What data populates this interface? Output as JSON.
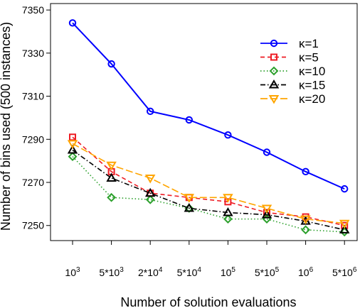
{
  "chart_data": {
    "type": "line",
    "title": "",
    "xlabel": "Number of solution evaluations",
    "ylabel": "Number of bins used (500 instances)",
    "categories": [
      {
        "base": "10",
        "exp": "3"
      },
      {
        "base": "5*10",
        "exp": "3"
      },
      {
        "base": "2*10",
        "exp": "4"
      },
      {
        "base": "5*10",
        "exp": "4"
      },
      {
        "base": "10",
        "exp": "5"
      },
      {
        "base": "5*10",
        "exp": "5"
      },
      {
        "base": "10",
        "exp": "6"
      },
      {
        "base": "5*10",
        "exp": "6"
      }
    ],
    "yticks": [
      7250,
      7270,
      7290,
      7310,
      7330,
      7350
    ],
    "ylim": [
      7243,
      7353
    ],
    "grid": false,
    "legend_position": "top-right",
    "series": [
      {
        "name": "κ=1",
        "color": "#0000ff",
        "marker": "circle",
        "dash": "solid",
        "values": [
          7344,
          7325,
          7303,
          7299,
          7292,
          7284,
          7275,
          7267
        ]
      },
      {
        "name": "κ=5",
        "color": "#ee1c24",
        "marker": "square",
        "dash": "dashed",
        "values": [
          7291,
          7275,
          7265,
          7263,
          7261,
          7256,
          7254,
          7250
        ]
      },
      {
        "name": "κ=10",
        "color": "#2ca02c",
        "marker": "diamond",
        "dash": "dotted",
        "values": [
          7282,
          7263,
          7262,
          7258,
          7253,
          7253,
          7248,
          7247
        ]
      },
      {
        "name": "κ=15",
        "color": "#000000",
        "marker": "triangle-up",
        "dash": "dashdot",
        "values": [
          7285,
          7272,
          7265,
          7258,
          7256,
          7255,
          7252,
          7248
        ]
      },
      {
        "name": "κ=20",
        "color": "#ffa500",
        "marker": "triangle-down",
        "dash": "longdash",
        "values": [
          7288,
          7278,
          7272,
          7263,
          7263,
          7258,
          7253,
          7251
        ]
      }
    ]
  }
}
